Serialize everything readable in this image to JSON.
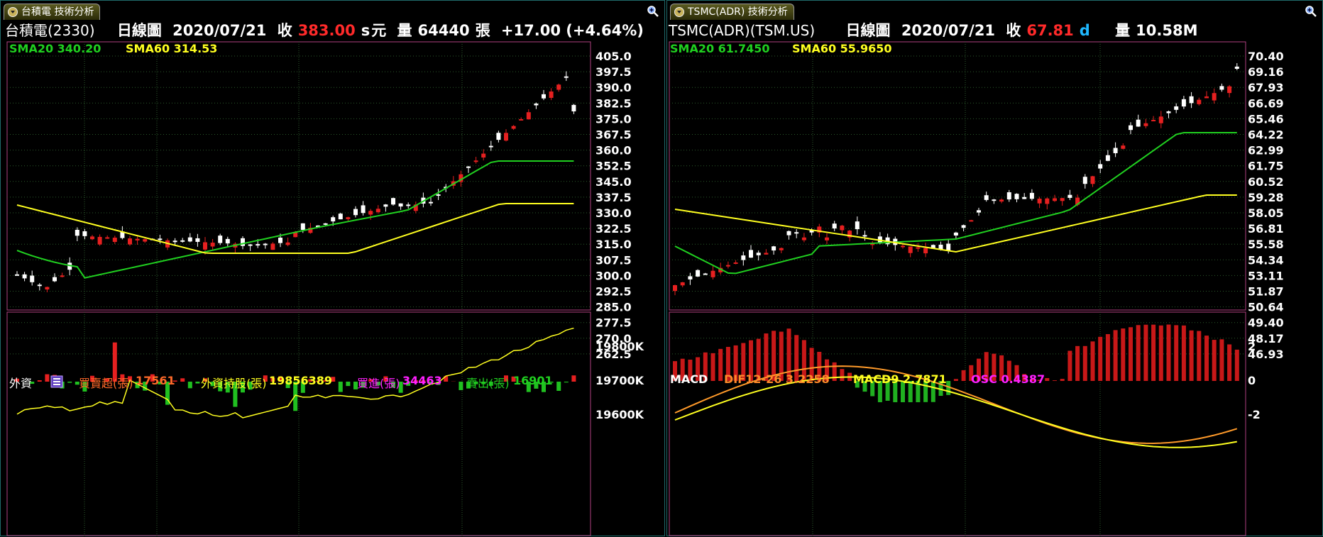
{
  "left": {
    "tab_title": "台積電 技術分析",
    "header": {
      "name": "台積電(2330)",
      "period": "日線圖",
      "date": "2020/07/21",
      "close_label": "收",
      "close": "383.00",
      "flag": "s",
      "unit": "元",
      "volume_label": "量",
      "volume": "64440",
      "volume_unit": "張",
      "change": "+17.00 (+4.64%)"
    },
    "sma20_label": "SMA20 340.20",
    "sma60_label": "SMA60 314.53",
    "sub": {
      "title": "外資",
      "buy_sell_label": "買賣超(張)",
      "buy_sell": "17561",
      "hold_label": "外資持股(張)",
      "hold": "19856389",
      "buy_label": "買進(張)",
      "buy": "34463",
      "sell_label": "賣出(張)",
      "sell": "16901"
    },
    "price_axis": [
      "405.0",
      "397.5",
      "390.0",
      "382.5",
      "375.0",
      "367.5",
      "360.0",
      "352.5",
      "345.0",
      "337.5",
      "330.0",
      "322.5",
      "315.0",
      "307.5",
      "300.0",
      "292.5",
      "285.0",
      "277.5",
      "270.0",
      "262.5"
    ],
    "sub_axis": [
      "19800K",
      "19700K",
      "19600K"
    ]
  },
  "right": {
    "tab_title": "TSMC(ADR) 技術分析",
    "header": {
      "name": "TSMC(ADR)(TSM.US)",
      "period": "日線圖",
      "date": "2020/07/21",
      "close_label": "收",
      "close": "67.81",
      "flag": "d",
      "volume_label": "量",
      "volume": "10.58M"
    },
    "sma20_label": "SMA20 61.7450",
    "sma60_label": "SMA60 55.9650",
    "sub": {
      "title": "MACD",
      "dif_label": "DIF12-26 3.2258",
      "macd_label": "MACD9 2.7871",
      "osc_label": "OSC 0.4387"
    },
    "price_axis": [
      "70.40",
      "69.16",
      "67.93",
      "66.69",
      "65.46",
      "64.22",
      "62.99",
      "61.75",
      "60.52",
      "59.28",
      "58.05",
      "56.81",
      "55.58",
      "54.34",
      "53.11",
      "51.87",
      "50.64",
      "49.40",
      "48.17",
      "46.93"
    ],
    "sub_axis": [
      "2",
      "0",
      "-2"
    ]
  },
  "colors": {
    "up": "#e62020",
    "down": "#ffffff",
    "sma20": "#20d020",
    "sma60": "#ffff20",
    "grid": "#2b5a2b",
    "frame": "#b04080"
  }
}
